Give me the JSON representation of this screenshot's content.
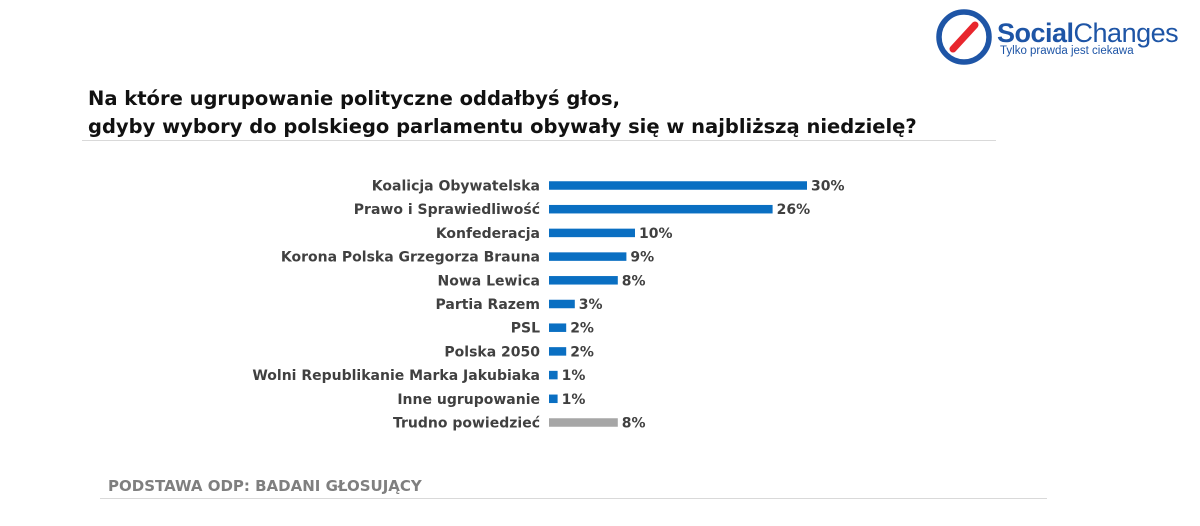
{
  "logo": {
    "word_bold": "Social",
    "word_regular": "Changes",
    "tagline": "Tylko prawda jest ciekawa",
    "icon": "circle-slash-logo-icon",
    "colors": {
      "ring": "#1e55a6",
      "slash": "#e8262d"
    }
  },
  "title": {
    "line1": "Na które ugrupowanie polityczne oddałbyś głos,",
    "line2": "gdyby wybory do polskiego parlamentu obywały się w najbliższą niedzielę?"
  },
  "footer": {
    "base_label": "PODSTAWA ODP: BADANI GŁOSUJĄCY"
  },
  "chart_data": {
    "type": "bar",
    "orientation": "horizontal",
    "categories": [
      "Koalicja Obywatelska",
      "Prawo i Sprawiedliwość",
      "Konfederacja",
      "Korona Polska Grzegorza Brauna",
      "Nowa Lewica",
      "Partia Razem",
      "PSL",
      "Polska 2050",
      "Wolni Republikanie Marka Jakubiaka",
      "Inne ugrupowanie",
      "Trudno powiedzieć"
    ],
    "values": [
      30,
      26,
      10,
      9,
      8,
      3,
      2,
      2,
      1,
      1,
      8
    ],
    "value_labels": [
      "30%",
      "26%",
      "10%",
      "9%",
      "8%",
      "3%",
      "2%",
      "2%",
      "1%",
      "1%",
      "8%"
    ],
    "unit": "%",
    "colors": [
      "#0a6fc2",
      "#0a6fc2",
      "#0a6fc2",
      "#0a6fc2",
      "#0a6fc2",
      "#0a6fc2",
      "#0a6fc2",
      "#0a6fc2",
      "#0a6fc2",
      "#0a6fc2",
      "#a6a6a6"
    ],
    "grid": false,
    "legend": "none"
  }
}
